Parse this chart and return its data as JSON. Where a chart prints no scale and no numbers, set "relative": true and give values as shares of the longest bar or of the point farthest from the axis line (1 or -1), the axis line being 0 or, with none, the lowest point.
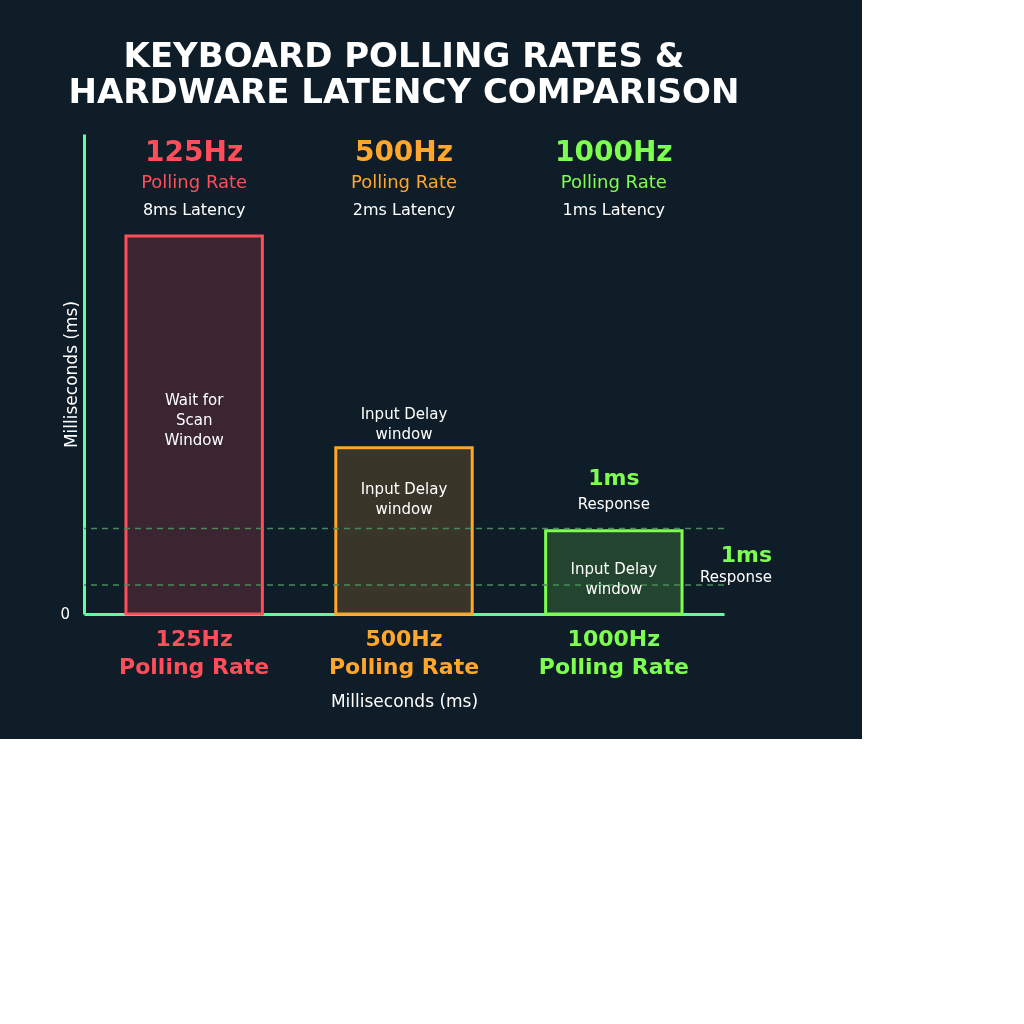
{
  "chart_data": {
    "type": "bar",
    "title": "KEYBOARD POLLING RATES &\nHARDWARE LATENCY COMPARISON",
    "relative": true,
    "categories": [
      "125Hz Polling Rate",
      "500Hz Polling Rate",
      "1000Hz Polling Rate"
    ],
    "values": [
      1,
      0.44,
      0.22
    ],
    "colors": [
      "#ff4d5a",
      "#ffa62b",
      "#7dff4f"
    ],
    "xlabel": "Milliseconds (ms)",
    "ylabel": "Milliseconds (ms)",
    "ref_lines": [
      {
        "axis": "y",
        "value": 0.226,
        "line_style": "dashed",
        "color": "#4a8a5a"
      },
      {
        "axis": "y",
        "value": 0.077,
        "line_style": "dashed",
        "color": "#4a8a5a"
      }
    ],
    "annotations": [
      "125Hz",
      "Polling Rate",
      "8ms Latency",
      "500Hz",
      "Polling Rate",
      "2ms Latency",
      "1000Hz",
      "Polling Rate",
      "1ms Latency",
      "Wait for\nScan\nWindow",
      "Input Delay\nwindow",
      "Input Delay\nwindow",
      "1ms",
      "Response",
      "Input Delay\nwindow",
      "1ms",
      "Response",
      "0"
    ]
  }
}
